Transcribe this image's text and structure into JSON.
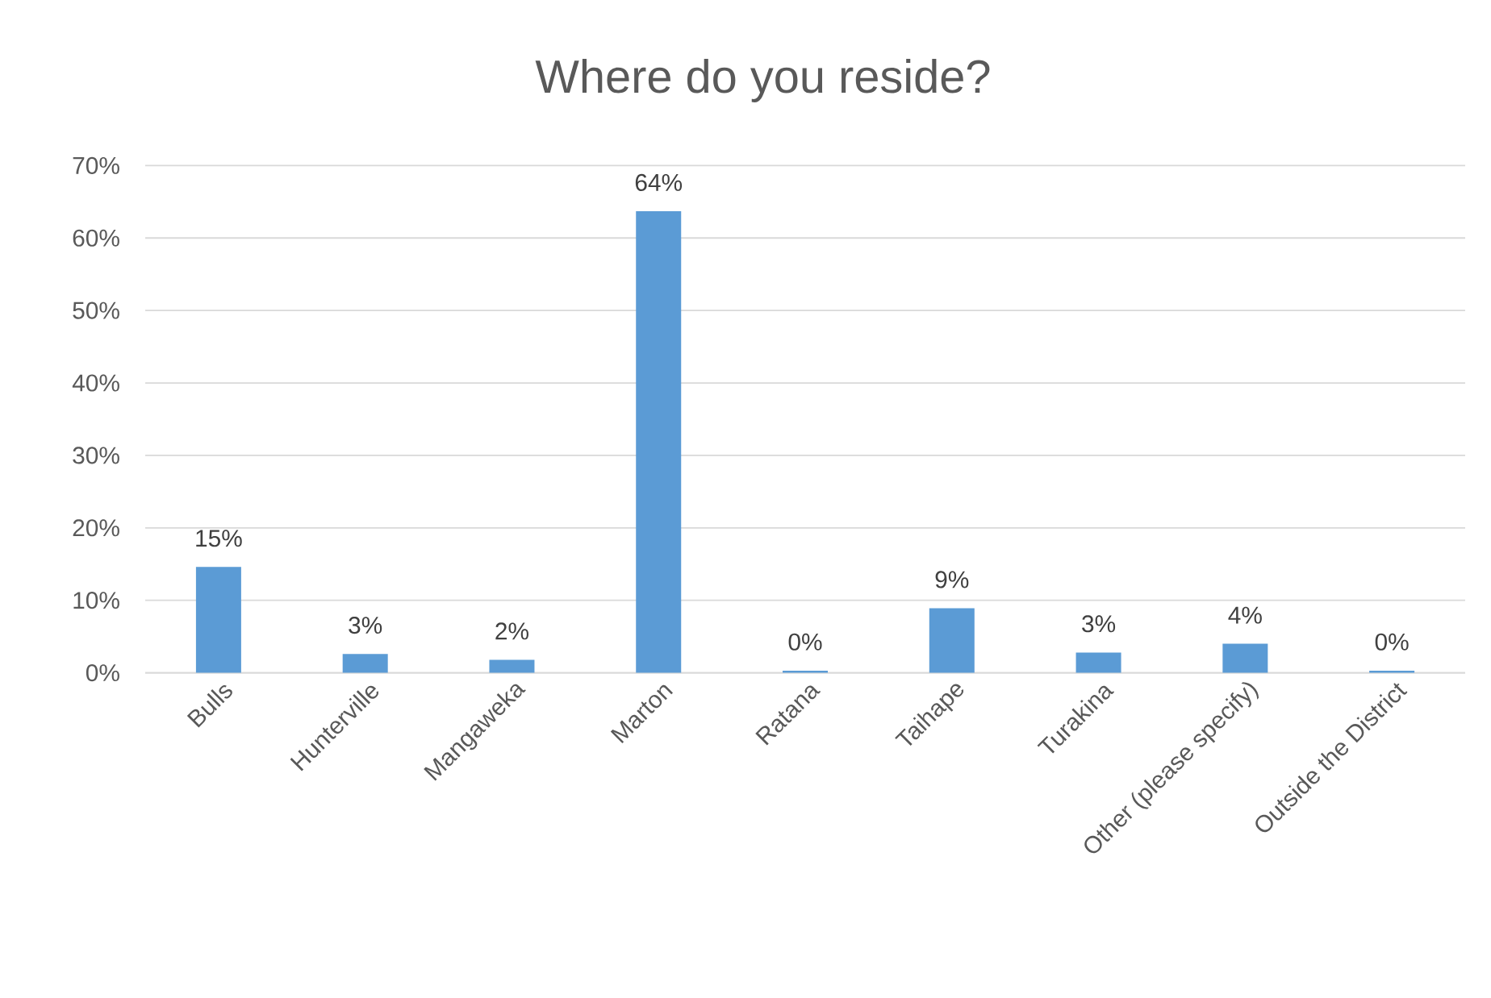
{
  "chart_data": {
    "type": "bar",
    "title": "Where do you reside?",
    "categories": [
      "Bulls",
      "Hunterville",
      "Mangaweka",
      "Marton",
      "Ratana",
      "Taihape",
      "Turakina",
      "Other (please specify)",
      "Outside the District"
    ],
    "values": [
      14.6,
      2.6,
      1.8,
      63.7,
      0.3,
      8.9,
      2.8,
      4.0,
      0.3
    ],
    "value_labels": [
      "15%",
      "3%",
      "2%",
      "64%",
      "0%",
      "9%",
      "3%",
      "4%",
      "0%"
    ],
    "color": "#5b9bd5",
    "ylim": [
      0,
      70
    ],
    "yticks": [
      {
        "value": 0,
        "label": "0%"
      },
      {
        "value": 10,
        "label": "10%"
      },
      {
        "value": 20,
        "label": "20%"
      },
      {
        "value": 30,
        "label": "30%"
      },
      {
        "value": 40,
        "label": "40%"
      },
      {
        "value": 50,
        "label": "50%"
      },
      {
        "value": 60,
        "label": "60%"
      },
      {
        "value": 70,
        "label": "70%"
      }
    ],
    "grid": "y"
  }
}
